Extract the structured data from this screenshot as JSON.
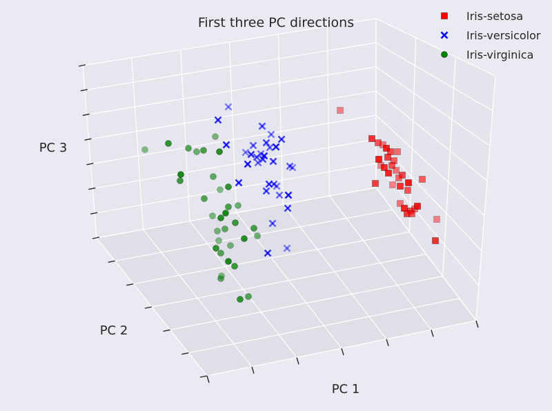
{
  "chart_data": {
    "type": "scatter",
    "title": "First three PC directions",
    "xlabel": "PC 1",
    "ylabel": "PC 2",
    "zlabel": "PC 3",
    "legend": "top-right",
    "grid": true,
    "tick_labels": "none",
    "series": [
      {
        "name": "Iris-setosa",
        "marker": "square",
        "color": "#ff0000",
        "points": [
          [
            493,
            160
          ],
          [
            539,
            201
          ],
          [
            548,
            207
          ],
          [
            555,
            210
          ],
          [
            560,
            215
          ],
          [
            566,
            220
          ],
          [
            576,
            220
          ],
          [
            549,
            231
          ],
          [
            562,
            228
          ],
          [
            571,
            233
          ],
          [
            552,
            240
          ],
          [
            557,
            243
          ],
          [
            568,
            240
          ],
          [
            574,
            247
          ],
          [
            563,
            251
          ],
          [
            583,
            254
          ],
          [
            578,
            258
          ],
          [
            592,
            265
          ],
          [
            544,
            266
          ],
          [
            612,
            260
          ],
          [
            569,
            268
          ],
          [
            580,
            270
          ],
          [
            591,
            276
          ],
          [
            580,
            295
          ],
          [
            586,
            302
          ],
          [
            595,
            306
          ],
          [
            601,
            303
          ],
          [
            605,
            299
          ],
          [
            590,
            310
          ],
          [
            597,
            310
          ],
          [
            633,
            318
          ],
          [
            631,
            349
          ]
        ]
      },
      {
        "name": "Iris-versicolor",
        "marker": "x",
        "color": "#0000ff",
        "points": [
          [
            331,
            155
          ],
          [
            316,
            174
          ],
          [
            380,
            183
          ],
          [
            393,
            195
          ],
          [
            328,
            210
          ],
          [
            386,
            207
          ],
          [
            391,
            214
          ],
          [
            400,
            213
          ],
          [
            408,
            202
          ],
          [
            367,
            211
          ],
          [
            356,
            221
          ],
          [
            364,
            224
          ],
          [
            372,
            228
          ],
          [
            378,
            223
          ],
          [
            383,
            226
          ],
          [
            381,
            231
          ],
          [
            374,
            236
          ],
          [
            359,
            238
          ],
          [
            396,
            234
          ],
          [
            420,
            241
          ],
          [
            424,
            243
          ],
          [
            390,
            267
          ],
          [
            397,
            267
          ],
          [
            401,
            270
          ],
          [
            346,
            265
          ],
          [
            386,
            277
          ],
          [
            405,
            283
          ],
          [
            418,
            283
          ],
          [
            417,
            302
          ],
          [
            395,
            324
          ],
          [
            416,
            360
          ],
          [
            388,
            367
          ]
        ]
      },
      {
        "name": "Iris-virginica",
        "marker": "circle",
        "color": "#008000",
        "points": [
          [
            210,
            217
          ],
          [
            244,
            208
          ],
          [
            273,
            215
          ],
          [
            312,
            198
          ],
          [
            318,
            220
          ],
          [
            295,
            218
          ],
          [
            285,
            220
          ],
          [
            262,
            253
          ],
          [
            261,
            262
          ],
          [
            309,
            256
          ],
          [
            319,
            275
          ],
          [
            331,
            271
          ],
          [
            296,
            288
          ],
          [
            308,
            313
          ],
          [
            320,
            316
          ],
          [
            331,
            300
          ],
          [
            345,
            298
          ],
          [
            327,
            309
          ],
          [
            341,
            323
          ],
          [
            326,
            332
          ],
          [
            317,
            349
          ],
          [
            313,
            360
          ],
          [
            320,
            367
          ],
          [
            334,
            356
          ],
          [
            354,
            346
          ],
          [
            368,
            331
          ],
          [
            373,
            342
          ],
          [
            331,
            379
          ],
          [
            340,
            386
          ],
          [
            320,
            404
          ],
          [
            321,
            400
          ],
          [
            348,
            434
          ],
          [
            360,
            430
          ],
          [
            315,
            335
          ]
        ]
      }
    ]
  }
}
